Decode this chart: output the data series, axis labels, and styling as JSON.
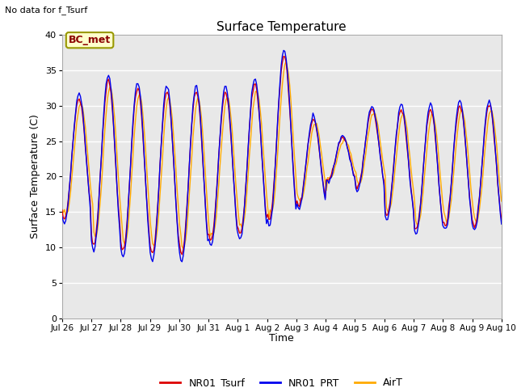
{
  "title": "Surface Temperature",
  "ylabel": "Surface Temperature (C)",
  "xlabel": "Time",
  "note": "No data for f_Tsurf",
  "bc_label": "BC_met",
  "ylim": [
    0,
    40
  ],
  "yticks": [
    0,
    5,
    10,
    15,
    20,
    25,
    30,
    35,
    40
  ],
  "legend": [
    "NR01_Tsurf",
    "NR01_PRT",
    "AirT"
  ],
  "line_colors": [
    "#dd0000",
    "#0000ee",
    "#ffaa00"
  ],
  "plot_bg": "#e8e8e8",
  "fig_bg": "#ffffff",
  "x_tick_labels": [
    "Jul 26",
    "Jul 27",
    "Jul 28",
    "Jul 29",
    "Jul 30",
    "Jul 31",
    "Aug 1",
    "Aug 2",
    "Aug 3",
    "Aug 4",
    "Aug 5",
    "Aug 6",
    "Aug 7",
    "Aug 8",
    "Aug 9",
    "Aug 10"
  ],
  "n_days": 15,
  "n_per_day": 24
}
